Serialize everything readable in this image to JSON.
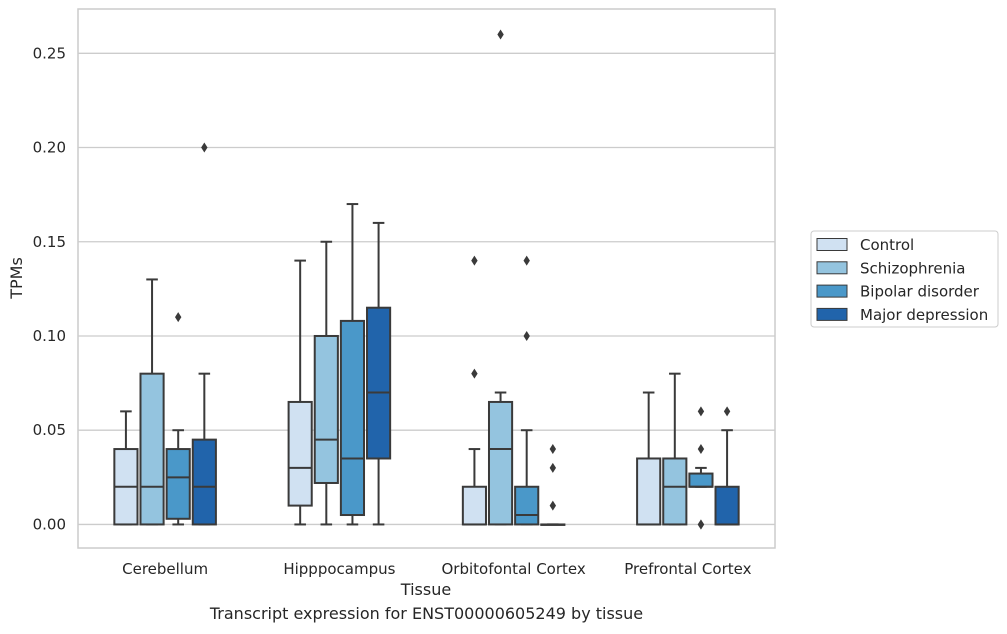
{
  "chart_data": {
    "type": "box",
    "title": "",
    "xlabel": "Tissue",
    "ylabel": "TPMs",
    "caption": "Transcript expression for ENST00000605249 by tissue",
    "ylim": [
      -0.0125,
      0.2735
    ],
    "yticks": [
      0.0,
      0.05,
      0.1,
      0.15,
      0.2,
      0.25
    ],
    "ytick_labels": [
      "0.00",
      "0.05",
      "0.10",
      "0.15",
      "0.20",
      "0.25"
    ],
    "grid": "horizontal",
    "legend_position": "right-center",
    "categories": [
      "Cerebellum",
      "Hipppocampus",
      "Orbitofontal Cortex",
      "Prefrontal Cortex"
    ],
    "series": [
      {
        "name": "Control",
        "color": "#d0e1f2",
        "boxes": [
          {
            "whisker_low": 0.0,
            "q1": 0.0,
            "median": 0.02,
            "q3": 0.04,
            "whisker_high": 0.06,
            "outliers": []
          },
          {
            "whisker_low": 0.0,
            "q1": 0.01,
            "median": 0.03,
            "q3": 0.065,
            "whisker_high": 0.14,
            "outliers": []
          },
          {
            "whisker_low": 0.0,
            "q1": 0.0,
            "median": 0.0,
            "q3": 0.02,
            "whisker_high": 0.04,
            "outliers": [
              0.08,
              0.14
            ]
          },
          {
            "whisker_low": 0.0,
            "q1": 0.0,
            "median": 0.0,
            "q3": 0.035,
            "whisker_high": 0.07,
            "outliers": []
          }
        ]
      },
      {
        "name": "Schizophrenia",
        "color": "#94c4df",
        "boxes": [
          {
            "whisker_low": 0.0,
            "q1": 0.0,
            "median": 0.02,
            "q3": 0.08,
            "whisker_high": 0.13,
            "outliers": []
          },
          {
            "whisker_low": 0.0,
            "q1": 0.022,
            "median": 0.045,
            "q3": 0.1,
            "whisker_high": 0.15,
            "outliers": []
          },
          {
            "whisker_low": 0.0,
            "q1": 0.0,
            "median": 0.04,
            "q3": 0.065,
            "whisker_high": 0.07,
            "outliers": [
              0.26
            ]
          },
          {
            "whisker_low": 0.0,
            "q1": 0.0,
            "median": 0.02,
            "q3": 0.035,
            "whisker_high": 0.08,
            "outliers": []
          }
        ]
      },
      {
        "name": "Bipolar disorder",
        "color": "#4a98c9",
        "boxes": [
          {
            "whisker_low": 0.0,
            "q1": 0.003,
            "median": 0.025,
            "q3": 0.04,
            "whisker_high": 0.05,
            "outliers": [
              0.11
            ]
          },
          {
            "whisker_low": 0.0,
            "q1": 0.005,
            "median": 0.035,
            "q3": 0.108,
            "whisker_high": 0.17,
            "outliers": []
          },
          {
            "whisker_low": 0.0,
            "q1": 0.0,
            "median": 0.005,
            "q3": 0.02,
            "whisker_high": 0.05,
            "outliers": [
              0.1,
              0.14
            ]
          },
          {
            "whisker_low": 0.02,
            "q1": 0.02,
            "median": 0.02,
            "q3": 0.027,
            "whisker_high": 0.03,
            "outliers": [
              0.0,
              0.0,
              0.04,
              0.06
            ]
          }
        ]
      },
      {
        "name": "Major depression",
        "color": "#2164ab",
        "boxes": [
          {
            "whisker_low": 0.0,
            "q1": 0.0,
            "median": 0.02,
            "q3": 0.045,
            "whisker_high": 0.08,
            "outliers": [
              0.2
            ]
          },
          {
            "whisker_low": 0.0,
            "q1": 0.035,
            "median": 0.07,
            "q3": 0.115,
            "whisker_high": 0.16,
            "outliers": []
          },
          {
            "whisker_low": 0.0,
            "q1": 0.0,
            "median": 0.0,
            "q3": 0.0,
            "whisker_high": 0.0,
            "outliers": [
              0.01,
              0.03,
              0.04
            ]
          },
          {
            "whisker_low": 0.0,
            "q1": 0.0,
            "median": 0.0,
            "q3": 0.02,
            "whisker_high": 0.05,
            "outliers": [
              0.06
            ]
          }
        ]
      }
    ],
    "line_color": "#3a3a3a",
    "grid_color": "#cccccc"
  }
}
